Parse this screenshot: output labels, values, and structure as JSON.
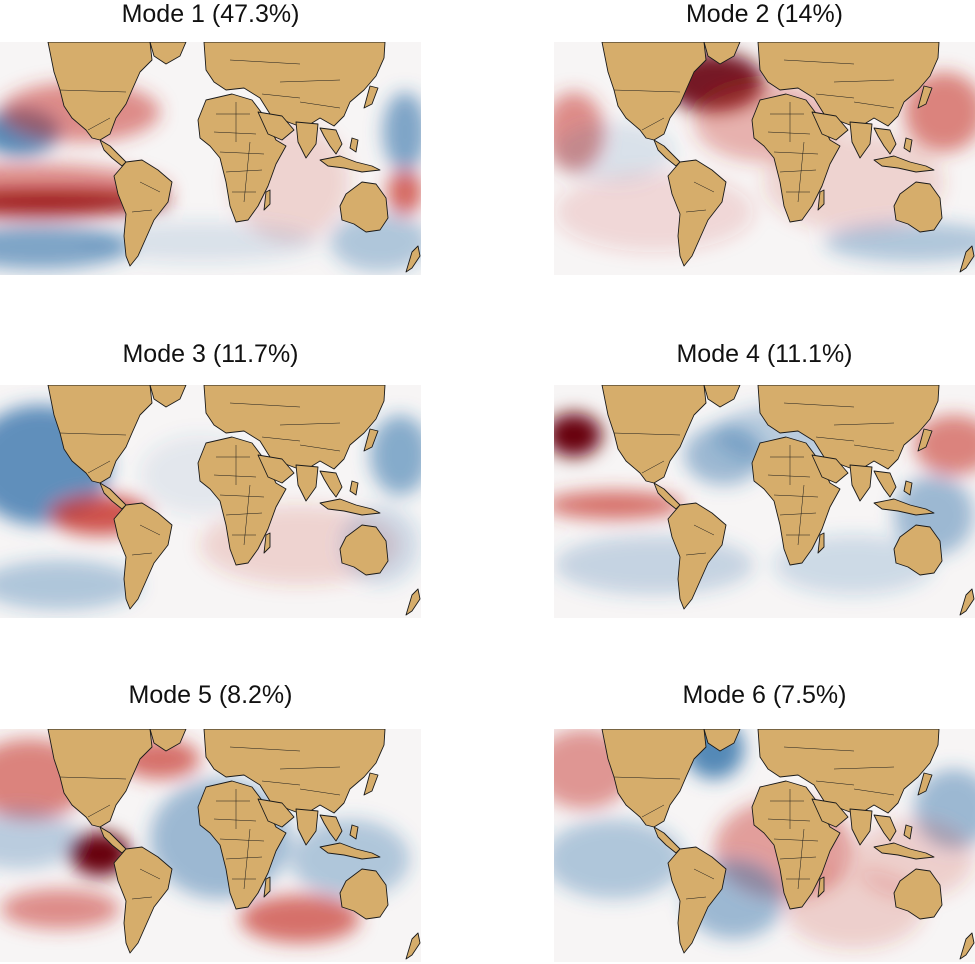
{
  "panels": [
    {
      "title": "Mode 1 (47.3%)"
    },
    {
      "title": "Mode 2 (14%)"
    },
    {
      "title": "Mode 3 (11.7%)"
    },
    {
      "title": "Mode 4 (11.1%)"
    },
    {
      "title": "Mode 5 (8.2%)"
    },
    {
      "title": "Mode 6 (7.5%)"
    }
  ],
  "colors": {
    "land": "#d6ad6b",
    "border": "#1a1a1a",
    "positive_dark": "#67000d",
    "positive": "#c8372f",
    "negative": "#2c6ea8",
    "neutral": "#f7f5f5"
  }
}
